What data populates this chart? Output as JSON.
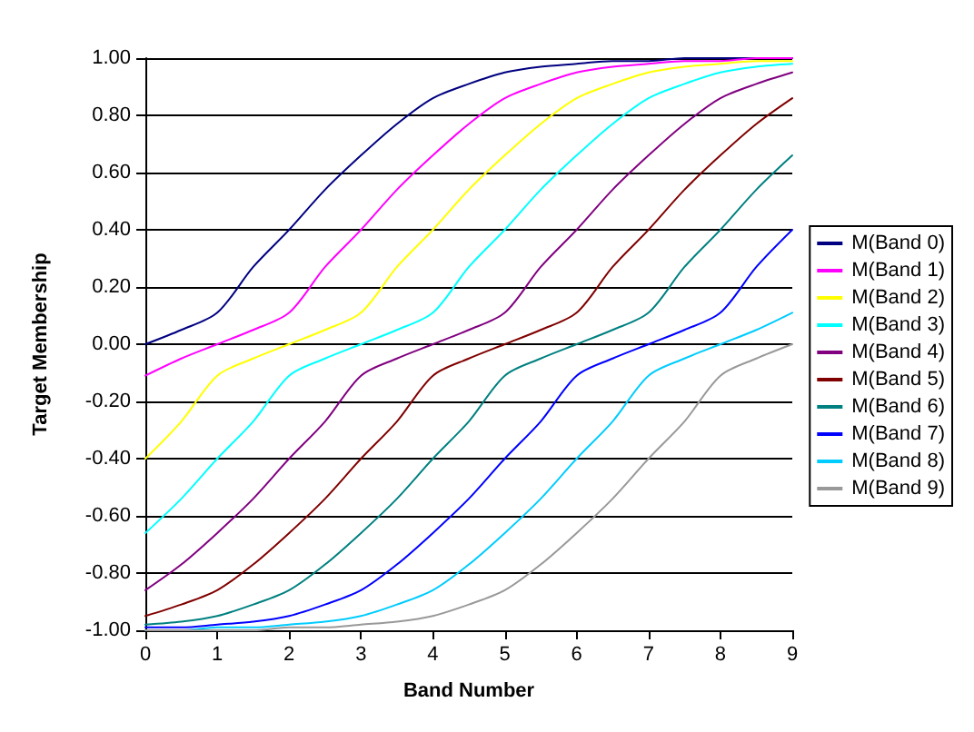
{
  "chart_data": {
    "type": "line",
    "xlabel": "Band Number",
    "ylabel": "Target Membership",
    "x": [
      0,
      0.5,
      1,
      1.5,
      2,
      2.5,
      3,
      3.5,
      4,
      4.5,
      5,
      5.5,
      6,
      6.5,
      7,
      7.5,
      8,
      8.5,
      9
    ],
    "xlim": [
      0,
      9
    ],
    "xticks": [
      0,
      1,
      2,
      3,
      4,
      5,
      6,
      7,
      8,
      9
    ],
    "ylim": [
      -1,
      1
    ],
    "yticks": [
      {
        "value": -1,
        "label": "-1.00"
      },
      {
        "value": -0.8,
        "label": "-0.80"
      },
      {
        "value": -0.6,
        "label": "-0.60"
      },
      {
        "value": -0.4,
        "label": "-0.40"
      },
      {
        "value": -0.2,
        "label": "-0.20"
      },
      {
        "value": 0,
        "label": "0.00"
      },
      {
        "value": 0.2,
        "label": "0.20"
      },
      {
        "value": 0.4,
        "label": "0.40"
      },
      {
        "value": 0.6,
        "label": "0.60"
      },
      {
        "value": 0.8,
        "label": "0.80"
      },
      {
        "value": 1,
        "label": "1.00"
      }
    ],
    "grid": "y",
    "legend": "right",
    "marker": "none",
    "line_style": "solid",
    "series": [
      {
        "name": "M(Band 0)",
        "color": "#000080",
        "values": [
          0,
          0.05,
          0.11,
          0.27,
          0.4,
          0.54,
          0.66,
          0.77,
          0.86,
          0.91,
          0.95,
          0.97,
          0.98,
          0.99,
          0.99,
          1,
          1,
          1,
          1
        ]
      },
      {
        "name": "M(Band 1)",
        "color": "#ff00ff",
        "values": [
          -0.11,
          -0.05,
          0,
          0.05,
          0.11,
          0.27,
          0.4,
          0.54,
          0.66,
          0.77,
          0.86,
          0.91,
          0.95,
          0.97,
          0.98,
          0.99,
          0.99,
          1,
          1
        ]
      },
      {
        "name": "M(Band 2)",
        "color": "#ffff00",
        "values": [
          -0.4,
          -0.27,
          -0.11,
          -0.05,
          0,
          0.05,
          0.11,
          0.27,
          0.4,
          0.54,
          0.66,
          0.77,
          0.86,
          0.91,
          0.95,
          0.97,
          0.98,
          0.99,
          0.99
        ]
      },
      {
        "name": "M(Band 3)",
        "color": "#00ffff",
        "values": [
          -0.66,
          -0.54,
          -0.4,
          -0.27,
          -0.11,
          -0.05,
          0,
          0.05,
          0.11,
          0.27,
          0.4,
          0.54,
          0.66,
          0.77,
          0.86,
          0.91,
          0.95,
          0.97,
          0.98
        ]
      },
      {
        "name": "M(Band 4)",
        "color": "#800080",
        "values": [
          -0.86,
          -0.77,
          -0.66,
          -0.54,
          -0.4,
          -0.27,
          -0.11,
          -0.05,
          0,
          0.05,
          0.11,
          0.27,
          0.4,
          0.54,
          0.66,
          0.77,
          0.86,
          0.91,
          0.95
        ]
      },
      {
        "name": "M(Band 5)",
        "color": "#800000",
        "values": [
          -0.95,
          -0.91,
          -0.86,
          -0.77,
          -0.66,
          -0.54,
          -0.4,
          -0.27,
          -0.11,
          -0.05,
          0,
          0.05,
          0.11,
          0.27,
          0.4,
          0.54,
          0.66,
          0.77,
          0.86
        ]
      },
      {
        "name": "M(Band 6)",
        "color": "#008080",
        "values": [
          -0.98,
          -0.97,
          -0.95,
          -0.91,
          -0.86,
          -0.77,
          -0.66,
          -0.54,
          -0.4,
          -0.27,
          -0.11,
          -0.05,
          0,
          0.05,
          0.11,
          0.27,
          0.4,
          0.54,
          0.66
        ]
      },
      {
        "name": "M(Band 7)",
        "color": "#0000ff",
        "values": [
          -0.99,
          -0.99,
          -0.98,
          -0.97,
          -0.95,
          -0.91,
          -0.86,
          -0.77,
          -0.66,
          -0.54,
          -0.4,
          -0.27,
          -0.11,
          -0.05,
          0,
          0.05,
          0.11,
          0.27,
          0.4
        ]
      },
      {
        "name": "M(Band 8)",
        "color": "#00ccff",
        "values": [
          -1,
          -1,
          -0.99,
          -0.99,
          -0.98,
          -0.97,
          -0.95,
          -0.91,
          -0.86,
          -0.77,
          -0.66,
          -0.54,
          -0.4,
          -0.27,
          -0.11,
          -0.05,
          0,
          0.05,
          0.11
        ]
      },
      {
        "name": "M(Band 9)",
        "color": "#999999",
        "values": [
          -1,
          -1,
          -1,
          -1,
          -0.99,
          -0.99,
          -0.98,
          -0.97,
          -0.95,
          -0.91,
          -0.86,
          -0.77,
          -0.66,
          -0.54,
          -0.4,
          -0.27,
          -0.11,
          -0.05,
          0
        ]
      }
    ]
  }
}
